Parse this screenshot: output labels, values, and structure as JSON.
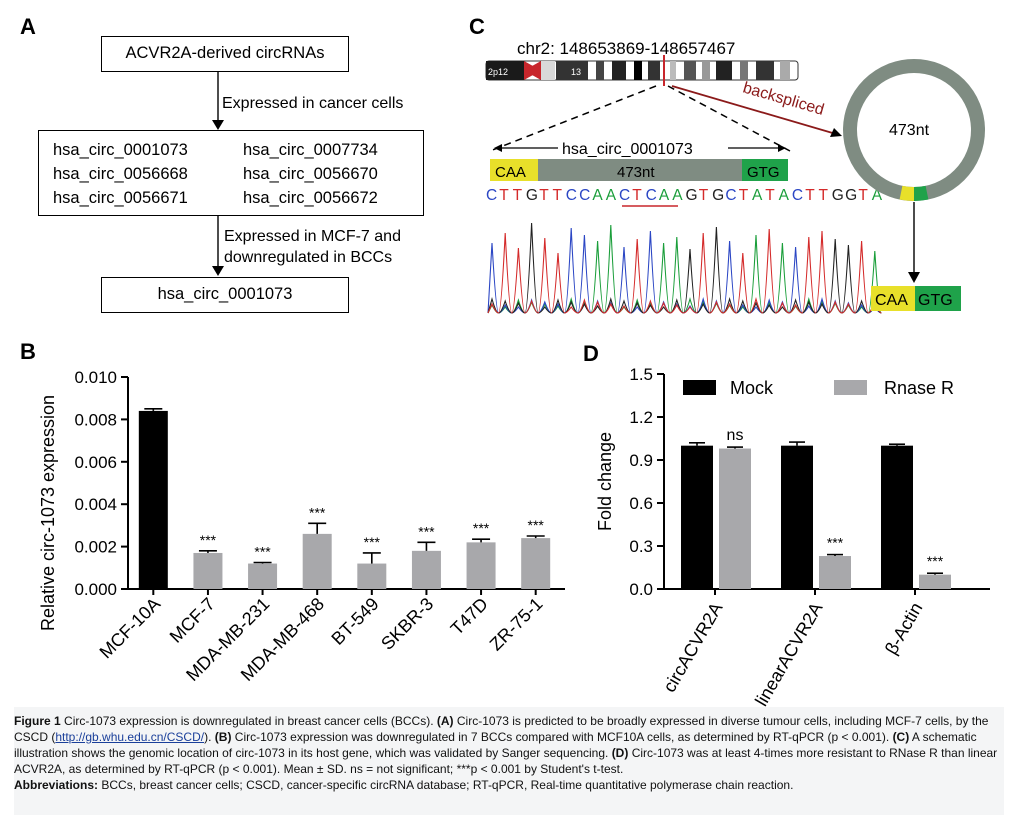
{
  "panelA": {
    "letter": "A",
    "top_box": "ACVR2A-derived circRNAs",
    "step1_label": "Expressed in cancer cells",
    "circ_list": [
      "hsa_circ_0001073",
      "hsa_circ_0007734",
      "hsa_circ_0056668",
      "hsa_circ_0056670",
      "hsa_circ_0056671",
      "hsa_circ_0056672"
    ],
    "step2_label_line1": "Expressed in MCF-7 and",
    "step2_label_line2": "downregulated in BCCs",
    "bottom_box": "hsa_circ_0001073"
  },
  "panelC": {
    "letter": "C",
    "locus": "chr2: 148653869-148657467",
    "band1": "2p12",
    "band2": "13",
    "backspliced": "backspliced",
    "circ_name": "hsa_circ_0001073",
    "exon_left": "CAA",
    "exon_mid": "473nt",
    "exon_right": "GTG",
    "sequence": "CTTGTTCCAACTCAAGTGCTATACTTGGTA",
    "ring_label": "473nt",
    "junction_left": "CAA",
    "junction_right": "GTG",
    "colors": {
      "yellow": "#e8e02a",
      "green": "#1fa24a",
      "gray": "#7f8c82",
      "dark_red": "#8b1a1a"
    }
  },
  "chart_data": [
    {
      "panel": "B",
      "type": "bar",
      "ylabel": "Relative circ-1073 expression",
      "xlabel": "",
      "ylim": [
        0,
        0.01
      ],
      "yticks": [
        "0.000",
        "0.002",
        "0.004",
        "0.006",
        "0.008",
        "0.010"
      ],
      "categories": [
        "MCF-10A",
        "MCF-7",
        "MDA-MB-231",
        "MDA-MB-468",
        "BT-549",
        "SKBR-3",
        "T47D",
        "ZR-75-1"
      ],
      "values": [
        0.0084,
        0.0017,
        0.0012,
        0.0026,
        0.0012,
        0.0018,
        0.0022,
        0.0024
      ],
      "errors": [
        0.0001,
        0.0001,
        5e-05,
        0.0005,
        0.0005,
        0.0004,
        0.00015,
        0.0001
      ],
      "annotations": [
        "",
        "***",
        "***",
        "***",
        "***",
        "***",
        "***",
        "***"
      ],
      "colors": [
        "#000000",
        "#a8a8ab",
        "#a8a8ab",
        "#a8a8ab",
        "#a8a8ab",
        "#a8a8ab",
        "#a8a8ab",
        "#a8a8ab"
      ]
    },
    {
      "panel": "D",
      "type": "bar",
      "ylabel": "Fold change",
      "xlabel": "",
      "ylim": [
        0,
        1.5
      ],
      "yticks": [
        "0.0",
        "0.3",
        "0.6",
        "0.9",
        "1.2",
        "1.5"
      ],
      "categories": [
        "circACVR2A",
        "linearACVR2A",
        "β-Actin"
      ],
      "series": [
        {
          "name": "Mock",
          "values": [
            1.0,
            1.0,
            1.0
          ],
          "errors": [
            0.02,
            0.025,
            0.01
          ],
          "color": "#000000"
        },
        {
          "name": "Rnase R",
          "values": [
            0.98,
            0.23,
            0.1
          ],
          "errors": [
            0.01,
            0.01,
            0.01
          ],
          "color": "#a8a8ab"
        }
      ],
      "annotations": [
        "ns",
        "***",
        "***"
      ],
      "legend": "top"
    }
  ],
  "caption": {
    "fig_label": "Figure 1",
    "fig_title": "Circ-1073 expression is downregulated in breast cancer cells (BCCs).",
    "a_label": "(A)",
    "a_text": "Circ-1073 is predicted to be broadly expressed in diverse tumour cells, including MCF-7 cells, by the CSCD (",
    "link": "http://gb.whu.edu.cn/CSCD/",
    "a_close": ").",
    "b_label": "(B)",
    "b_text": "Circ-1073 expression was downregulated in 7 BCCs compared with MCF10A cells, as determined by RT-qPCR (p < 0.001).",
    "c_label": "(C)",
    "c_text": "A schematic illustration shows the genomic location of circ-1073 in its host gene, which was validated by Sanger sequencing.",
    "d_label": "(D)",
    "d_text": "Circ-1073 was at least 4-times more resistant to RNase R than linear ACVR2A, as determined by RT-qPCR (p < 0.001). Mean ± SD. ns = not significant; ***p < 0.001 by Student's t-test.",
    "abbr_label": "Abbreviations:",
    "abbr_text": "BCCs, breast cancer cells; CSCD, cancer-specific circRNA database; RT-qPCR, Real-time quantitative polymerase chain reaction."
  }
}
